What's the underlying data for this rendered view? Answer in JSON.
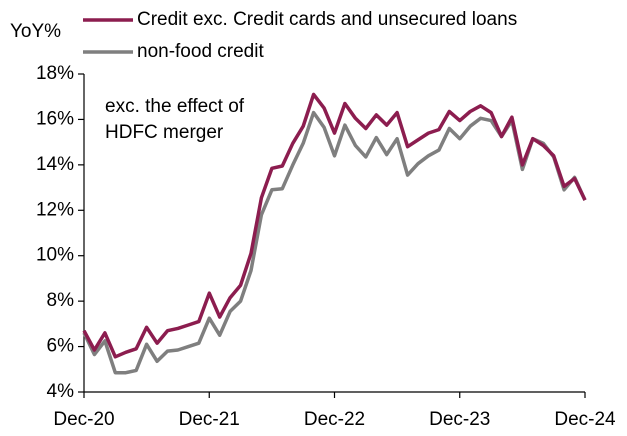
{
  "chart_data": {
    "type": "line",
    "y_label": "YoY%",
    "annotation": [
      "exc. the effect of",
      "HDFC merger"
    ],
    "categories": [
      "Dec-20",
      null,
      null,
      null,
      null,
      null,
      null,
      null,
      null,
      null,
      null,
      null,
      "Dec-21",
      null,
      null,
      null,
      null,
      null,
      null,
      null,
      null,
      null,
      null,
      null,
      "Dec-22",
      null,
      null,
      null,
      null,
      null,
      null,
      null,
      null,
      null,
      null,
      null,
      "Dec-23",
      null,
      null,
      null,
      null,
      null,
      null,
      null,
      null,
      null,
      null,
      null,
      "Dec-24"
    ],
    "series": [
      {
        "name": "Credit exc. Credit cards and unsecured loans",
        "color": "#8c1d4f",
        "values": [
          6.7,
          5.85,
          6.6,
          5.55,
          5.75,
          5.9,
          6.85,
          6.15,
          6.7,
          6.8,
          6.95,
          7.1,
          8.35,
          7.3,
          8.15,
          8.7,
          10.1,
          12.55,
          13.85,
          13.95,
          14.95,
          15.7,
          17.1,
          16.5,
          15.4,
          16.7,
          16.05,
          15.6,
          16.2,
          15.75,
          16.3,
          14.8,
          15.1,
          15.4,
          15.55,
          16.35,
          15.95,
          16.35,
          16.6,
          16.3,
          15.25,
          16.1,
          14.0,
          15.15,
          14.85,
          14.4,
          13.05,
          13.4,
          12.45
        ]
      },
      {
        "name": "non-food credit",
        "color": "#7f7f7f",
        "values": [
          6.6,
          5.65,
          6.25,
          4.85,
          4.85,
          4.95,
          6.1,
          5.35,
          5.8,
          5.85,
          6.0,
          6.15,
          7.25,
          6.5,
          7.55,
          8.0,
          9.35,
          11.8,
          12.9,
          12.95,
          14.0,
          14.95,
          16.3,
          15.65,
          14.4,
          15.75,
          14.85,
          14.35,
          15.2,
          14.45,
          15.15,
          13.55,
          14.05,
          14.4,
          14.65,
          15.6,
          15.15,
          15.7,
          16.05,
          15.95,
          15.25,
          15.95,
          13.8,
          15.15,
          14.95,
          14.35,
          12.9,
          13.45,
          12.45
        ]
      }
    ],
    "ylim": [
      4,
      18
    ],
    "yticks": [
      {
        "value": 4,
        "label": "4%"
      },
      {
        "value": 6,
        "label": "6%"
      },
      {
        "value": 8,
        "label": "8%"
      },
      {
        "value": 10,
        "label": "10%"
      },
      {
        "value": 12,
        "label": "12%"
      },
      {
        "value": 14,
        "label": "14%"
      },
      {
        "value": 16,
        "label": "16%"
      },
      {
        "value": 18,
        "label": "18%"
      }
    ],
    "grid": false,
    "legend": "top"
  }
}
